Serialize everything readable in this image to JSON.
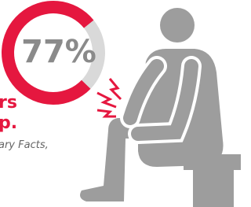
{
  "chart_data": {
    "type": "donut",
    "values": [
      77
    ],
    "value_labels": [
      "77%"
    ],
    "color": "#e5173f",
    "rest_color": "#d9d9d9",
    "max": 100
  },
  "caption": {
    "headline": [
      "rs",
      "p."
    ],
    "source": "ary Facts,"
  }
}
